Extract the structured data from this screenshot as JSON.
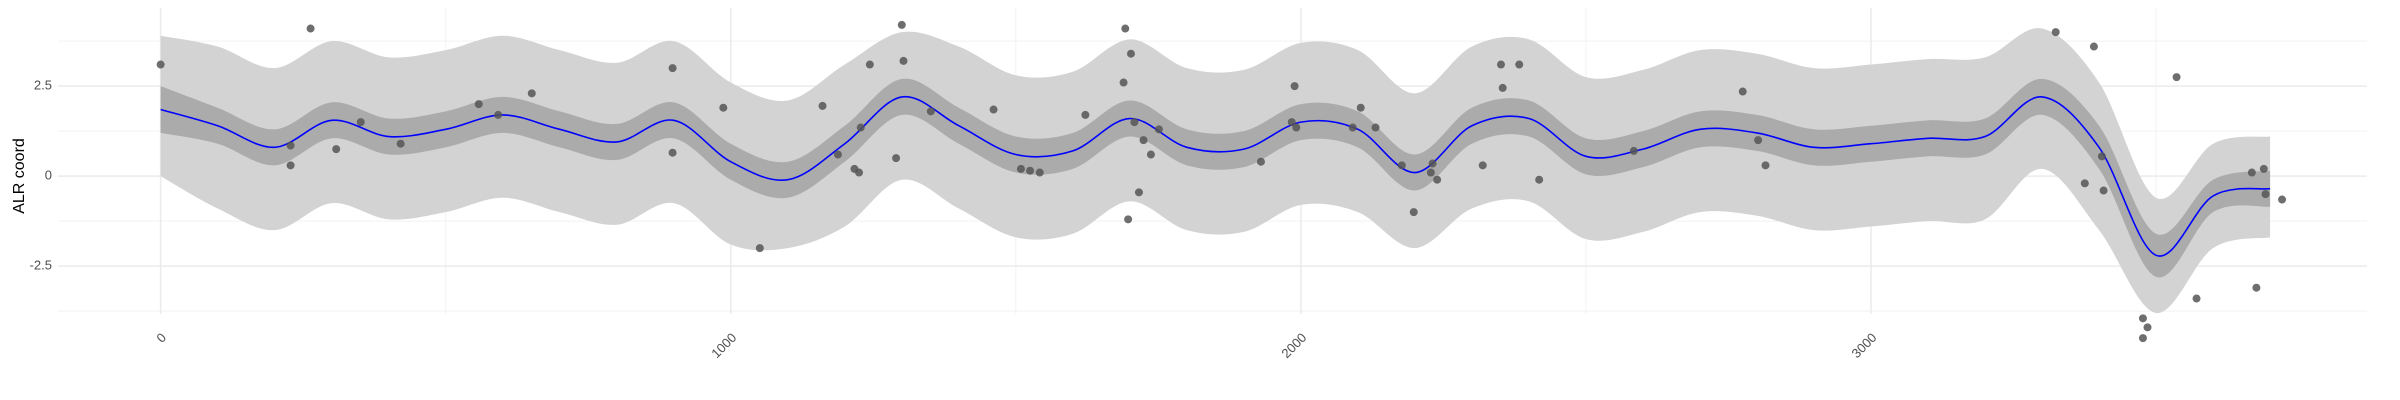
{
  "chart_data": {
    "type": "line",
    "y_label": "ALR coord",
    "xlim": [
      -180,
      3870
    ],
    "ylim": [
      -3.83,
      4.67
    ],
    "xticks": [
      0,
      1000,
      2000,
      3000
    ],
    "yticks": [
      -2.5,
      0.0,
      2.5
    ],
    "grid": true,
    "x": [
      0,
      100,
      200,
      300,
      400,
      500,
      600,
      700,
      800,
      900,
      1000,
      1100,
      1200,
      1300,
      1400,
      1500,
      1600,
      1700,
      1800,
      1900,
      2000,
      2100,
      2200,
      2300,
      2400,
      2500,
      2600,
      2700,
      2800,
      2900,
      3000,
      3100,
      3200,
      3300,
      3400,
      3500,
      3600,
      3700
    ],
    "bands": [
      {
        "color": "#d3d3d3",
        "upper": [
          3.9,
          3.6,
          3.0,
          3.75,
          3.3,
          3.5,
          3.9,
          3.5,
          3.15,
          3.75,
          2.6,
          2.1,
          3.1,
          4.0,
          3.6,
          2.8,
          2.9,
          3.8,
          3.0,
          2.95,
          3.7,
          3.5,
          2.3,
          3.6,
          3.8,
          2.75,
          2.95,
          3.5,
          3.4,
          3.0,
          3.1,
          3.25,
          3.3,
          4.1,
          2.6,
          -0.6,
          0.9,
          1.1
        ],
        "lower": [
          0,
          -0.9,
          -1.5,
          -0.75,
          -1.2,
          -1.0,
          -0.6,
          -1.0,
          -1.35,
          -0.75,
          -1.9,
          -2.0,
          -1.4,
          -0.1,
          -0.9,
          -1.7,
          -1.6,
          -0.7,
          -1.5,
          -1.55,
          -0.8,
          -1.0,
          -2.0,
          -0.9,
          -0.7,
          -1.75,
          -1.55,
          -1.0,
          -1.1,
          -1.5,
          -1.4,
          -1.25,
          -1.2,
          0.2,
          -1.5,
          -3.8,
          -2.0,
          -1.7
        ]
      },
      {
        "color": "#ababab",
        "upper": [
          2.5,
          1.9,
          1.3,
          2.05,
          1.6,
          1.8,
          2.2,
          1.8,
          1.45,
          2.05,
          0.9,
          0.4,
          1.4,
          2.7,
          1.9,
          1.1,
          1.2,
          2.1,
          1.3,
          1.25,
          2.0,
          1.8,
          0.6,
          1.9,
          2.1,
          1.05,
          1.25,
          1.8,
          1.7,
          1.3,
          1.4,
          1.55,
          1.6,
          2.7,
          1.4,
          -1.6,
          -0.1,
          0.15
        ],
        "lower": [
          1.2,
          0.9,
          0.3,
          1.05,
          0.6,
          0.8,
          1.2,
          0.8,
          0.45,
          1.05,
          -0.1,
          -0.6,
          0.4,
          1.7,
          0.9,
          0.1,
          0.2,
          1.1,
          0.3,
          0.25,
          1.0,
          0.8,
          -0.4,
          0.9,
          1.1,
          0.05,
          0.25,
          0.8,
          0.7,
          0.3,
          0.4,
          0.55,
          0.6,
          1.7,
          0.2,
          -2.8,
          -1.0,
          -0.85
        ]
      }
    ],
    "line": {
      "color": "#0000ff",
      "values": [
        1.85,
        1.4,
        0.8,
        1.55,
        1.1,
        1.3,
        1.7,
        1.3,
        0.95,
        1.55,
        0.4,
        -0.1,
        0.9,
        2.2,
        1.4,
        0.6,
        0.7,
        1.6,
        0.8,
        0.75,
        1.5,
        1.3,
        0.1,
        1.4,
        1.6,
        0.55,
        0.75,
        1.3,
        1.2,
        0.8,
        0.9,
        1.05,
        1.1,
        2.2,
        0.8,
        -2.2,
        -0.55,
        -0.35
      ]
    },
    "points": {
      "color": "#555555",
      "x": [
        0,
        228,
        228,
        263,
        308,
        351,
        421,
        558,
        592,
        651,
        898,
        898,
        987,
        1051,
        1161,
        1188,
        1217,
        1225,
        1228,
        1244,
        1290,
        1300,
        1303,
        1351,
        1461,
        1509,
        1525,
        1542,
        1622,
        1692,
        1689,
        1702,
        1697,
        1708,
        1716,
        1724,
        1737,
        1751,
        1930,
        1984,
        1989,
        1992,
        2091,
        2105,
        2131,
        2177,
        2198,
        2228,
        2231,
        2239,
        2319,
        2351,
        2354,
        2383,
        2418,
        2584,
        2775,
        2802,
        2815,
        3324,
        3391,
        3375,
        3405,
        3408,
        3477,
        3485,
        3477,
        3536,
        3571,
        3668,
        3676,
        3689,
        3692,
        3721
      ],
      "y": [
        3.1,
        0.85,
        0.3,
        4.1,
        0.75,
        1.5,
        0.9,
        2.0,
        1.7,
        2.3,
        3.0,
        0.65,
        1.9,
        -2.0,
        1.95,
        0.6,
        0.2,
        0.1,
        1.35,
        3.1,
        0.5,
        4.2,
        3.2,
        1.8,
        1.85,
        0.2,
        0.15,
        0.1,
        1.7,
        4.1,
        2.6,
        3.4,
        -1.2,
        1.5,
        -0.45,
        1.0,
        0.6,
        1.3,
        0.4,
        1.5,
        2.5,
        1.35,
        1.35,
        1.9,
        1.35,
        0.3,
        -1.0,
        0.1,
        0.35,
        -0.1,
        0.3,
        3.1,
        2.45,
        3.1,
        -0.1,
        0.7,
        2.35,
        1.0,
        0.3,
        4.0,
        3.6,
        -0.2,
        0.55,
        -0.4,
        -4.5,
        -4.2,
        -3.95,
        2.75,
        -3.4,
        0.1,
        -3.1,
        0.2,
        -0.5,
        -0.65
      ]
    }
  }
}
